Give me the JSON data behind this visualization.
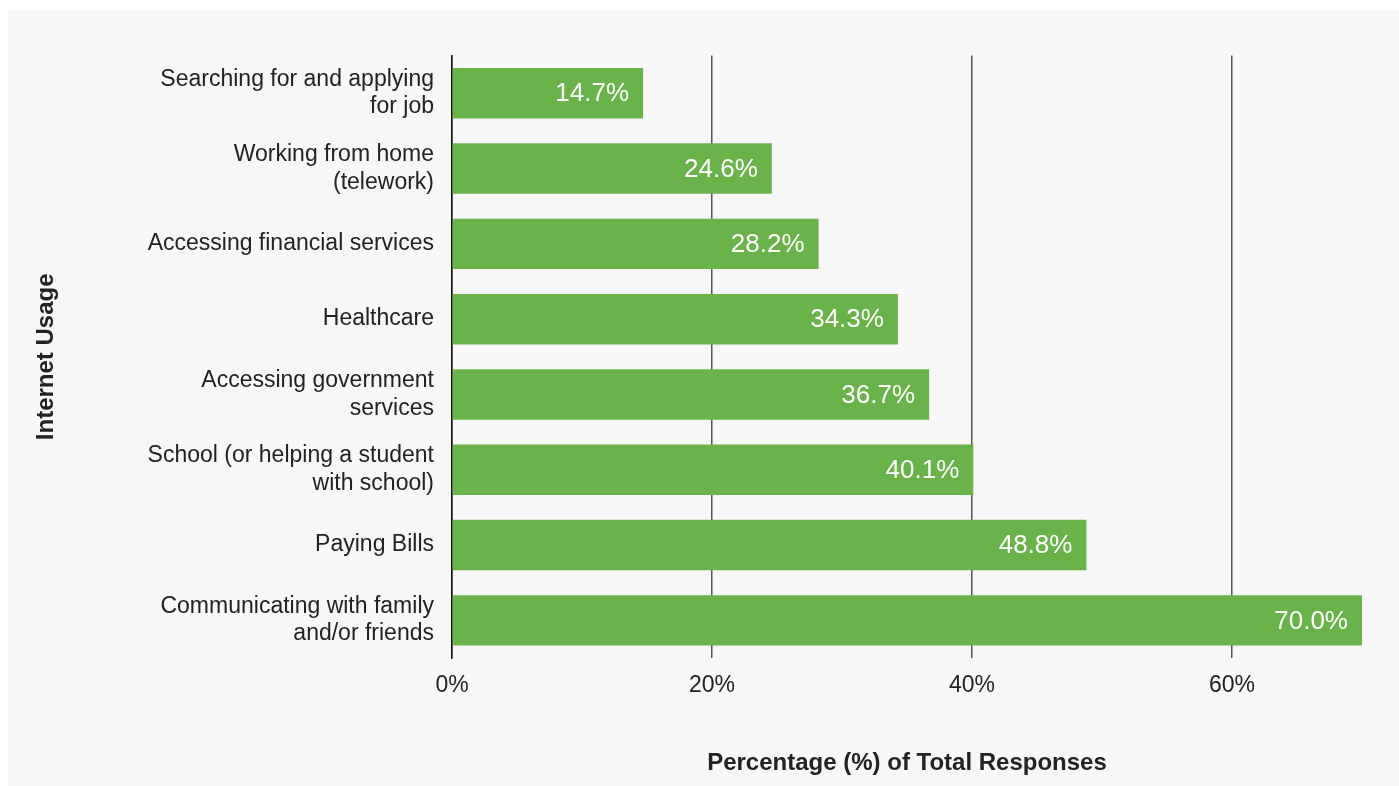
{
  "chart_data": {
    "type": "bar",
    "orientation": "horizontal",
    "xlabel": "Percentage (%) of Total Responses",
    "ylabel": "Internet Usage",
    "categories": [
      "Searching for and applying for job",
      "Working from home (telework)",
      "Accessing financial services",
      "Healthcare",
      "Accessing government services",
      "School (or helping a student with school)",
      "Paying Bills",
      "Communicating with family and/or friends"
    ],
    "values": [
      14.7,
      24.6,
      28.2,
      34.3,
      36.7,
      40.1,
      48.8,
      70.0
    ],
    "value_labels": [
      "14.7%",
      "24.6%",
      "28.2%",
      "34.3%",
      "36.7%",
      "40.1%",
      "48.8%",
      "70.0%"
    ],
    "color": "#6ab34a",
    "xlim": [
      0,
      70
    ],
    "xticks": [
      {
        "value": 0,
        "label": "0%"
      },
      {
        "value": 20,
        "label": "20%"
      },
      {
        "value": 40,
        "label": "40%"
      },
      {
        "value": 60,
        "label": "60%"
      }
    ],
    "grid": "x",
    "legend": false
  }
}
